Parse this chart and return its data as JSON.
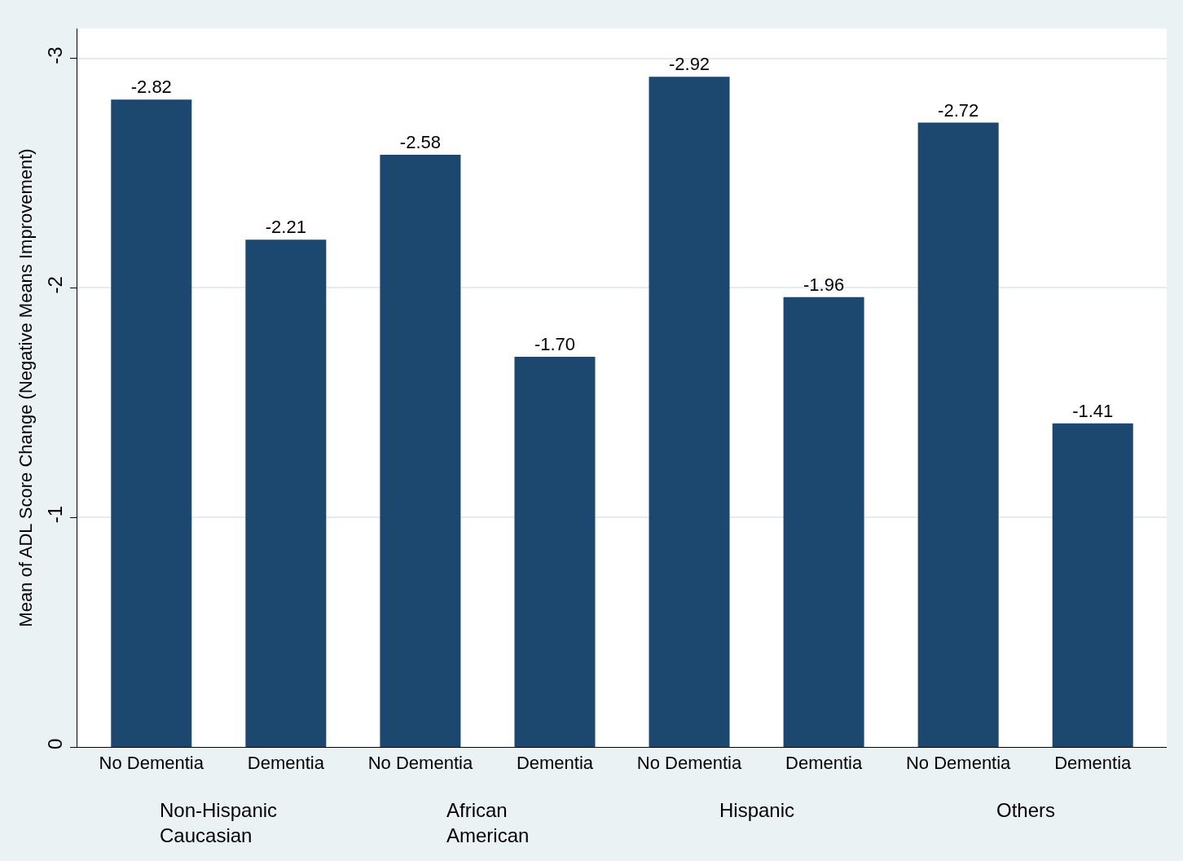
{
  "chart_data": {
    "type": "bar",
    "ylabel": "Mean of ADL Score Change (Negative Means Improvement)",
    "categories": [
      "No Dementia",
      "Dementia",
      "No Dementia",
      "Dementia",
      "No Dementia",
      "Dementia",
      "No Dementia",
      "Dementia"
    ],
    "values": [
      -2.82,
      -2.21,
      -2.58,
      -1.7,
      -2.92,
      -1.96,
      -2.72,
      -1.41
    ],
    "value_labels": [
      "-2.82",
      "-2.21",
      "-2.58",
      "-1.70",
      "-2.92",
      "-1.96",
      "-2.72",
      "-1.41"
    ],
    "color": "#1c476f",
    "ylim": [
      0,
      -3.13
    ],
    "yticks": [
      0,
      -1,
      -2,
      -3
    ],
    "grid": "y",
    "legend": false,
    "annotations": [
      "Non-Hispanic\nCaucasian",
      "African\nAmerican",
      "Hispanic",
      "Others"
    ]
  }
}
